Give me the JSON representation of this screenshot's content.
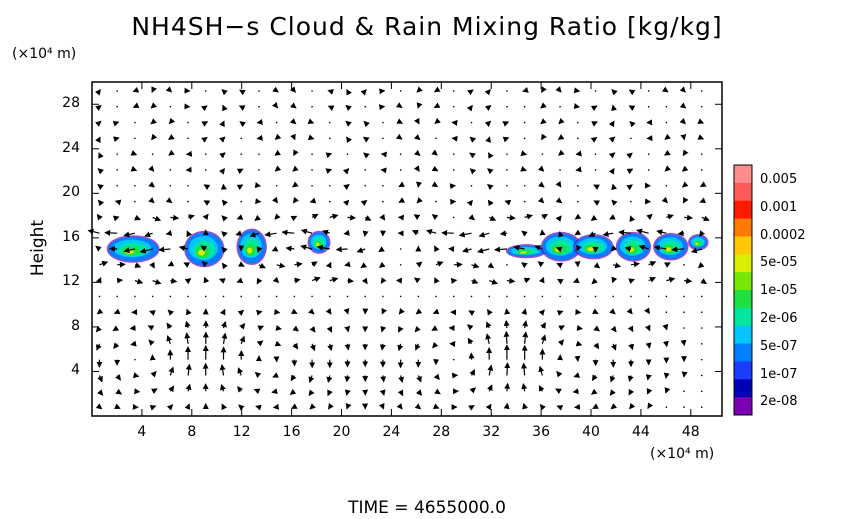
{
  "chart_data": {
    "type": "heatmap",
    "title": "NH4SH−s Cloud & Rain Mixing Ratio [kg/kg]",
    "ylabel": "Height",
    "x_unit": "(×10⁴ m)",
    "y_unit": "(×10⁴ m)",
    "x_ticks": [
      4,
      8,
      12,
      16,
      20,
      24,
      28,
      32,
      36,
      40,
      44,
      48
    ],
    "y_ticks": [
      4,
      8,
      12,
      16,
      20,
      24,
      28
    ],
    "xlim": [
      0,
      50.5
    ],
    "ylim": [
      0,
      30
    ],
    "footer": "TIME  =  4655000.0",
    "colorbar": {
      "labels": [
        "0.005",
        "0.001",
        "0.0002",
        "5e-05",
        "1e-05",
        "2e-06",
        "5e-07",
        "1e-07",
        "2e-08"
      ],
      "colors": [
        "#ff8c8c",
        "#ff5a5a",
        "#ff1a00",
        "#ff7a00",
        "#ffc800",
        "#d8f000",
        "#78e800",
        "#20e040",
        "#00e6a0",
        "#00c8ff",
        "#0080ff",
        "#1a3cff",
        "#0000b4",
        "#7a00b4"
      ]
    },
    "cloud_cells": [
      {
        "x": 3.3,
        "y": 15.0,
        "w": 4.0,
        "h": 2.2
      },
      {
        "x": 9.0,
        "y": 15.0,
        "w": 3.0,
        "h": 3.0
      },
      {
        "x": 12.8,
        "y": 15.2,
        "w": 2.2,
        "h": 3.0
      },
      {
        "x": 18.2,
        "y": 15.6,
        "w": 1.6,
        "h": 1.8
      },
      {
        "x": 34.8,
        "y": 14.8,
        "w": 3.0,
        "h": 1.0
      },
      {
        "x": 37.6,
        "y": 15.2,
        "w": 3.0,
        "h": 2.4
      },
      {
        "x": 40.2,
        "y": 15.2,
        "w": 3.0,
        "h": 2.0
      },
      {
        "x": 43.4,
        "y": 15.2,
        "w": 2.6,
        "h": 2.4
      },
      {
        "x": 46.4,
        "y": 15.2,
        "w": 2.6,
        "h": 2.2
      },
      {
        "x": 48.6,
        "y": 15.6,
        "w": 1.4,
        "h": 1.2
      }
    ],
    "wind_field": "vector arrows"
  }
}
